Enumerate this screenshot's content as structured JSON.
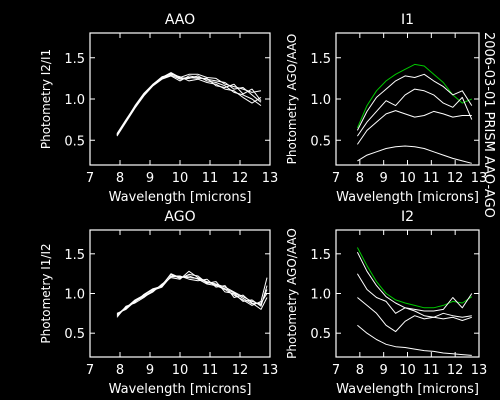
{
  "colors": {
    "background": "#000000",
    "foreground": "#ffffff",
    "highlight": "#00c800"
  },
  "side_label": "2006-03-01 PRISM AAO-AGO",
  "chart_data": [
    {
      "type": "line",
      "title": "AAO",
      "xlabel": "Wavelength [microns]",
      "ylabel": "Photometry I2/I1",
      "xlim": [
        7,
        13
      ],
      "ylim": [
        0.2,
        1.8
      ],
      "xticks": [
        7,
        8,
        9,
        10,
        11,
        12,
        13
      ],
      "yticks": [
        0.5,
        1.0,
        1.5
      ],
      "ytick_labels": [
        "0.5",
        "1.0",
        "1.5"
      ],
      "series": [
        {
          "color": "white",
          "x": [
            7.9,
            8.2,
            8.5,
            8.8,
            9.1,
            9.4,
            9.7,
            10.0,
            10.3,
            10.6,
            10.9,
            11.2,
            11.5,
            11.8,
            12.1,
            12.4,
            12.7
          ],
          "y": [
            0.57,
            0.74,
            0.92,
            1.07,
            1.18,
            1.26,
            1.32,
            1.26,
            1.3,
            1.3,
            1.26,
            1.25,
            1.18,
            1.15,
            1.12,
            1.08,
            1.1
          ]
        },
        {
          "color": "white",
          "x": [
            7.9,
            8.2,
            8.5,
            8.8,
            9.1,
            9.4,
            9.7,
            10.0,
            10.3,
            10.6,
            10.9,
            11.2,
            11.5,
            11.8,
            12.1,
            12.4,
            12.7
          ],
          "y": [
            0.56,
            0.73,
            0.9,
            1.05,
            1.17,
            1.25,
            1.29,
            1.24,
            1.25,
            1.28,
            1.22,
            1.2,
            1.16,
            1.08,
            1.05,
            1.0,
            0.92
          ]
        },
        {
          "color": "white",
          "x": [
            7.9,
            8.2,
            8.5,
            8.8,
            9.1,
            9.4,
            9.7,
            10.0,
            10.3,
            10.6,
            10.9,
            11.2,
            11.5,
            11.8,
            12.1,
            12.4,
            12.7
          ],
          "y": [
            0.58,
            0.75,
            0.91,
            1.06,
            1.18,
            1.27,
            1.3,
            1.27,
            1.22,
            1.24,
            1.2,
            1.18,
            1.12,
            1.1,
            1.02,
            0.95,
            1.02
          ]
        },
        {
          "color": "white",
          "x": [
            7.9,
            8.2,
            8.5,
            8.8,
            9.1,
            9.4,
            9.7,
            10.0,
            10.3,
            10.6,
            10.9,
            11.2,
            11.5,
            11.8,
            12.1,
            12.4,
            12.7
          ],
          "y": [
            0.55,
            0.72,
            0.89,
            1.04,
            1.16,
            1.24,
            1.28,
            1.22,
            1.28,
            1.26,
            1.24,
            1.22,
            1.2,
            1.12,
            1.14,
            1.05,
            0.96
          ]
        },
        {
          "color": "white",
          "x": [
            7.9,
            8.2,
            8.5,
            8.8,
            9.1,
            9.4,
            9.7,
            10.0,
            10.3,
            10.6,
            10.9,
            11.2,
            11.5,
            11.8,
            12.1,
            12.4,
            12.7
          ],
          "y": [
            0.57,
            0.74,
            0.9,
            1.06,
            1.17,
            1.25,
            1.31,
            1.25,
            1.26,
            1.25,
            1.25,
            1.16,
            1.14,
            1.18,
            1.06,
            1.12,
            0.98
          ]
        }
      ]
    },
    {
      "type": "line",
      "title": "I1",
      "xlabel": "Wavelength [microns]",
      "ylabel": "Photometry AGO/AAO",
      "xlim": [
        7,
        13
      ],
      "ylim": [
        0.2,
        1.8
      ],
      "xticks": [
        7,
        8,
        9,
        10,
        11,
        12,
        13
      ],
      "yticks": [
        0.5,
        1.0,
        1.5
      ],
      "ytick_labels": [
        "0.5",
        "1.0",
        "1.5"
      ],
      "series": [
        {
          "color": "green",
          "x": [
            7.9,
            8.3,
            8.7,
            9.1,
            9.5,
            9.9,
            10.3,
            10.7,
            11.1,
            11.5,
            11.9,
            12.3,
            12.7
          ],
          "y": [
            0.65,
            0.92,
            1.1,
            1.22,
            1.3,
            1.36,
            1.42,
            1.4,
            1.3,
            1.2,
            1.05,
            0.95,
            1.0
          ]
        },
        {
          "color": "white",
          "x": [
            7.9,
            8.3,
            8.7,
            9.1,
            9.5,
            9.9,
            10.3,
            10.7,
            11.1,
            11.5,
            11.9,
            12.3,
            12.7
          ],
          "y": [
            0.62,
            0.85,
            1.02,
            1.12,
            1.22,
            1.28,
            1.26,
            1.3,
            1.22,
            1.15,
            1.05,
            1.1,
            0.92
          ]
        },
        {
          "color": "white",
          "x": [
            7.9,
            8.3,
            8.7,
            9.1,
            9.5,
            9.9,
            10.3,
            10.7,
            11.1,
            11.5,
            11.9,
            12.3,
            12.7
          ],
          "y": [
            0.55,
            0.72,
            0.85,
            0.98,
            0.92,
            1.05,
            1.12,
            1.1,
            1.05,
            0.95,
            0.9,
            1.02,
            0.75
          ]
        },
        {
          "color": "white",
          "x": [
            7.9,
            8.3,
            8.7,
            9.1,
            9.5,
            9.9,
            10.3,
            10.7,
            11.1,
            11.5,
            11.9,
            12.3,
            12.7
          ],
          "y": [
            0.45,
            0.62,
            0.72,
            0.82,
            0.86,
            0.82,
            0.78,
            0.8,
            0.85,
            0.82,
            0.78,
            0.8,
            0.8
          ]
        },
        {
          "color": "white",
          "x": [
            7.9,
            8.3,
            8.7,
            9.1,
            9.5,
            9.9,
            10.3,
            10.7,
            11.1,
            11.5,
            11.9,
            12.3,
            12.7
          ],
          "y": [
            0.25,
            0.32,
            0.36,
            0.4,
            0.42,
            0.43,
            0.42,
            0.4,
            0.36,
            0.32,
            0.28,
            0.25,
            0.22
          ]
        }
      ]
    },
    {
      "type": "line",
      "title": "AGO",
      "xlabel": "Wavelength [microns]",
      "ylabel": "Photometry I1/I2",
      "xlim": [
        7,
        13
      ],
      "ylim": [
        0.2,
        1.8
      ],
      "xticks": [
        7,
        8,
        9,
        10,
        11,
        12,
        13
      ],
      "yticks": [
        0.5,
        1.0,
        1.5
      ],
      "ytick_labels": [
        "0.5",
        "1.0",
        "1.5"
      ],
      "series": [
        {
          "color": "white",
          "x": [
            7.9,
            8.2,
            8.5,
            8.8,
            9.1,
            9.4,
            9.7,
            10.0,
            10.3,
            10.6,
            10.9,
            11.2,
            11.5,
            11.8,
            12.1,
            12.4,
            12.7,
            12.9
          ],
          "y": [
            0.72,
            0.82,
            0.92,
            0.98,
            1.05,
            1.1,
            1.25,
            1.2,
            1.22,
            1.18,
            1.12,
            1.1,
            1.05,
            0.98,
            0.92,
            0.85,
            0.9,
            1.2
          ]
        },
        {
          "color": "white",
          "x": [
            7.9,
            8.2,
            8.5,
            8.8,
            9.1,
            9.4,
            9.7,
            10.0,
            10.3,
            10.6,
            10.9,
            11.2,
            11.5,
            11.8,
            12.1,
            12.4,
            12.7,
            12.9
          ],
          "y": [
            0.75,
            0.8,
            0.9,
            0.96,
            1.02,
            1.12,
            1.2,
            1.18,
            1.28,
            1.2,
            1.15,
            1.12,
            1.08,
            1.02,
            0.96,
            0.9,
            0.86,
            1.05
          ]
        },
        {
          "color": "white",
          "x": [
            7.9,
            8.2,
            8.5,
            8.8,
            9.1,
            9.4,
            9.7,
            10.0,
            10.3,
            10.6,
            10.9,
            11.2,
            11.5,
            11.8,
            12.1,
            12.4,
            12.7,
            12.9
          ],
          "y": [
            0.7,
            0.84,
            0.88,
            0.95,
            1.04,
            1.08,
            1.22,
            1.22,
            1.18,
            1.16,
            1.18,
            1.08,
            1.1,
            0.95,
            0.98,
            0.88,
            0.8,
            0.95
          ]
        },
        {
          "color": "white",
          "x": [
            7.9,
            8.2,
            8.5,
            8.8,
            9.1,
            9.4,
            9.7,
            10.0,
            10.3,
            10.6,
            10.9,
            11.2,
            11.5,
            11.8,
            12.1,
            12.4,
            12.7,
            12.9
          ],
          "y": [
            0.74,
            0.81,
            0.91,
            0.97,
            1.03,
            1.11,
            1.24,
            1.19,
            1.24,
            1.22,
            1.13,
            1.15,
            1.02,
            1.0,
            0.9,
            0.92,
            0.84,
            1.1
          ]
        },
        {
          "color": "white",
          "x": [
            7.9,
            8.2,
            8.5,
            8.8,
            9.1,
            9.4,
            9.7,
            10.0,
            10.3,
            10.6,
            10.9,
            11.2,
            11.5,
            11.8,
            12.1,
            12.4,
            12.7,
            12.9
          ],
          "y": [
            0.73,
            0.83,
            0.89,
            0.99,
            1.06,
            1.09,
            1.21,
            1.21,
            1.2,
            1.19,
            1.14,
            1.11,
            1.06,
            1.01,
            0.94,
            0.87,
            0.88,
            1.0
          ]
        }
      ]
    },
    {
      "type": "line",
      "title": "I2",
      "xlabel": "Wavelength [microns]",
      "ylabel": "Photometry AGO/AAO",
      "xlim": [
        7,
        13
      ],
      "ylim": [
        0.2,
        1.8
      ],
      "xticks": [
        7,
        8,
        9,
        10,
        11,
        12,
        13
      ],
      "yticks": [
        0.5,
        1.0,
        1.5
      ],
      "ytick_labels": [
        "0.5",
        "1.0",
        "1.5"
      ],
      "series": [
        {
          "color": "green",
          "x": [
            7.9,
            8.3,
            8.7,
            9.1,
            9.5,
            9.9,
            10.3,
            10.7,
            11.1,
            11.5,
            11.9,
            12.3,
            12.7
          ],
          "y": [
            1.58,
            1.35,
            1.15,
            1.0,
            0.92,
            0.88,
            0.85,
            0.82,
            0.82,
            0.85,
            0.9,
            0.88,
            0.96
          ]
        },
        {
          "color": "white",
          "x": [
            7.9,
            8.3,
            8.7,
            9.1,
            9.5,
            9.9,
            10.3,
            10.7,
            11.1,
            11.5,
            11.9,
            12.3,
            12.7
          ],
          "y": [
            1.52,
            1.28,
            1.1,
            0.96,
            0.88,
            0.82,
            0.8,
            0.78,
            0.78,
            0.8,
            0.95,
            0.82,
            1.0
          ]
        },
        {
          "color": "white",
          "x": [
            7.9,
            8.3,
            8.7,
            9.1,
            9.5,
            9.9,
            10.3,
            10.7,
            11.1,
            11.5,
            11.9,
            12.3,
            12.7
          ],
          "y": [
            1.25,
            1.05,
            0.95,
            0.9,
            0.75,
            0.82,
            0.78,
            0.72,
            0.7,
            0.75,
            0.72,
            0.7,
            0.72
          ]
        },
        {
          "color": "white",
          "x": [
            7.9,
            8.3,
            8.7,
            9.1,
            9.5,
            9.9,
            10.3,
            10.7,
            11.1,
            11.5,
            11.9,
            12.3,
            12.7
          ],
          "y": [
            0.95,
            0.85,
            0.75,
            0.6,
            0.52,
            0.65,
            0.72,
            0.68,
            0.7,
            0.68,
            0.7,
            0.66,
            0.7
          ]
        },
        {
          "color": "white",
          "x": [
            7.9,
            8.3,
            8.7,
            9.1,
            9.5,
            9.9,
            10.3,
            10.7,
            11.1,
            11.5,
            11.9,
            12.3,
            12.7
          ],
          "y": [
            0.6,
            0.5,
            0.42,
            0.36,
            0.33,
            0.32,
            0.3,
            0.28,
            0.27,
            0.25,
            0.24,
            0.23,
            0.22
          ]
        }
      ]
    }
  ]
}
